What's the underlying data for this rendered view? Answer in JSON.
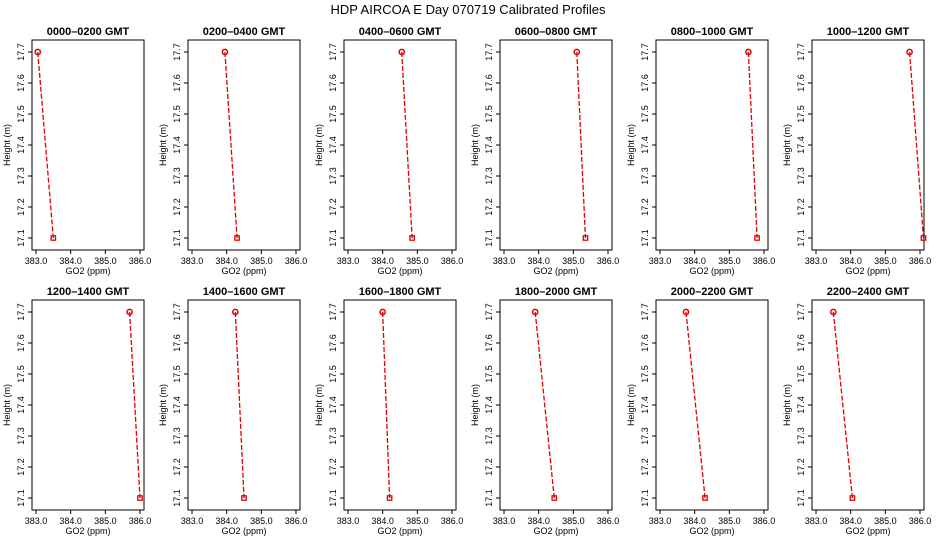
{
  "figure": {
    "title": "HDP  AIRCOA E  Day 070719  Calibrated Profiles"
  },
  "chart_data": [
    {
      "type": "line",
      "title": "0000–0200 GMT",
      "xlabel": "GO2 (ppm)",
      "ylabel": "Height (m)",
      "xlim": [
        383.0,
        386.0
      ],
      "ylim": [
        17.1,
        17.7
      ],
      "xticks": [
        "383.0",
        "384.0",
        "385.0",
        "386.0"
      ],
      "yticks": [
        "17.1",
        "17.2",
        "17.3",
        "17.4",
        "17.5",
        "17.6",
        "17.7"
      ],
      "series": [
        {
          "x": [
            383.05,
            383.5
          ],
          "y": [
            17.7,
            17.1
          ]
        }
      ]
    },
    {
      "type": "line",
      "title": "0200–0400 GMT",
      "xlabel": "GO2 (ppm)",
      "ylabel": "Height (m)",
      "xlim": [
        383.0,
        386.0
      ],
      "ylim": [
        17.1,
        17.7
      ],
      "xticks": [
        "383.0",
        "384.0",
        "385.0",
        "386.0"
      ],
      "yticks": [
        "17.1",
        "17.2",
        "17.3",
        "17.4",
        "17.5",
        "17.6",
        "17.7"
      ],
      "series": [
        {
          "x": [
            383.95,
            384.3
          ],
          "y": [
            17.7,
            17.1
          ]
        }
      ]
    },
    {
      "type": "line",
      "title": "0400–0600 GMT",
      "xlabel": "GO2 (ppm)",
      "ylabel": "Height (m)",
      "xlim": [
        383.0,
        386.0
      ],
      "ylim": [
        17.1,
        17.7
      ],
      "xticks": [
        "383.0",
        "384.0",
        "385.0",
        "386.0"
      ],
      "yticks": [
        "17.1",
        "17.2",
        "17.3",
        "17.4",
        "17.5",
        "17.6",
        "17.7"
      ],
      "series": [
        {
          "x": [
            384.55,
            384.85
          ],
          "y": [
            17.7,
            17.1
          ]
        }
      ]
    },
    {
      "type": "line",
      "title": "0600–0800 GMT",
      "xlabel": "GO2 (ppm)",
      "ylabel": "Height (m)",
      "xlim": [
        383.0,
        386.0
      ],
      "ylim": [
        17.1,
        17.7
      ],
      "xticks": [
        "383.0",
        "384.0",
        "385.0",
        "386.0"
      ],
      "yticks": [
        "17.1",
        "17.2",
        "17.3",
        "17.4",
        "17.5",
        "17.6",
        "17.7"
      ],
      "series": [
        {
          "x": [
            385.1,
            385.35
          ],
          "y": [
            17.7,
            17.1
          ]
        }
      ]
    },
    {
      "type": "line",
      "title": "0800–1000 GMT",
      "xlabel": "GO2 (ppm)",
      "ylabel": "Height (m)",
      "xlim": [
        383.0,
        386.0
      ],
      "ylim": [
        17.1,
        17.7
      ],
      "xticks": [
        "383.0",
        "384.0",
        "385.0",
        "386.0"
      ],
      "yticks": [
        "17.1",
        "17.2",
        "17.3",
        "17.4",
        "17.5",
        "17.6",
        "17.7"
      ],
      "series": [
        {
          "x": [
            385.55,
            385.8
          ],
          "y": [
            17.7,
            17.1
          ]
        }
      ]
    },
    {
      "type": "line",
      "title": "1000–1200 GMT",
      "xlabel": "GO2 (ppm)",
      "ylabel": "Height (m)",
      "xlim": [
        383.0,
        386.0
      ],
      "ylim": [
        17.1,
        17.7
      ],
      "xticks": [
        "383.0",
        "384.0",
        "385.0",
        "386.0"
      ],
      "yticks": [
        "17.1",
        "17.2",
        "17.3",
        "17.4",
        "17.5",
        "17.6",
        "17.7"
      ],
      "series": [
        {
          "x": [
            385.7,
            386.1
          ],
          "y": [
            17.7,
            17.1
          ]
        }
      ]
    },
    {
      "type": "line",
      "title": "1200–1400 GMT",
      "xlabel": "GO2 (ppm)",
      "ylabel": "Height (m)",
      "xlim": [
        383.0,
        386.0
      ],
      "ylim": [
        17.1,
        17.7
      ],
      "xticks": [
        "383.0",
        "384.0",
        "385.0",
        "386.0"
      ],
      "yticks": [
        "17.1",
        "17.2",
        "17.3",
        "17.4",
        "17.5",
        "17.6",
        "17.7"
      ],
      "series": [
        {
          "x": [
            385.7,
            386.0
          ],
          "y": [
            17.7,
            17.1
          ]
        }
      ]
    },
    {
      "type": "line",
      "title": "1400–1600 GMT",
      "xlabel": "GO2 (ppm)",
      "ylabel": "Height (m)",
      "xlim": [
        383.0,
        386.0
      ],
      "ylim": [
        17.1,
        17.7
      ],
      "xticks": [
        "383.0",
        "384.0",
        "385.0",
        "386.0"
      ],
      "yticks": [
        "17.1",
        "17.2",
        "17.3",
        "17.4",
        "17.5",
        "17.6",
        "17.7"
      ],
      "series": [
        {
          "x": [
            384.25,
            384.5
          ],
          "y": [
            17.7,
            17.1
          ]
        }
      ]
    },
    {
      "type": "line",
      "title": "1600–1800 GMT",
      "xlabel": "GO2 (ppm)",
      "ylabel": "Height (m)",
      "xlim": [
        383.0,
        386.0
      ],
      "ylim": [
        17.1,
        17.7
      ],
      "xticks": [
        "383.0",
        "384.0",
        "385.0",
        "386.0"
      ],
      "yticks": [
        "17.1",
        "17.2",
        "17.3",
        "17.4",
        "17.5",
        "17.6",
        "17.7"
      ],
      "series": [
        {
          "x": [
            384.0,
            384.2
          ],
          "y": [
            17.7,
            17.1
          ]
        }
      ]
    },
    {
      "type": "line",
      "title": "1800–2000 GMT",
      "xlabel": "GO2 (ppm)",
      "ylabel": "Height (m)",
      "xlim": [
        383.0,
        386.0
      ],
      "ylim": [
        17.1,
        17.7
      ],
      "xticks": [
        "383.0",
        "384.0",
        "385.0",
        "386.0"
      ],
      "yticks": [
        "17.1",
        "17.2",
        "17.3",
        "17.4",
        "17.5",
        "17.6",
        "17.7"
      ],
      "series": [
        {
          "x": [
            383.9,
            384.45
          ],
          "y": [
            17.7,
            17.1
          ]
        }
      ]
    },
    {
      "type": "line",
      "title": "2000–2200 GMT",
      "xlabel": "GO2 (ppm)",
      "ylabel": "Height (m)",
      "xlim": [
        383.0,
        386.0
      ],
      "ylim": [
        17.1,
        17.7
      ],
      "xticks": [
        "383.0",
        "384.0",
        "385.0",
        "386.0"
      ],
      "yticks": [
        "17.1",
        "17.2",
        "17.3",
        "17.4",
        "17.5",
        "17.6",
        "17.7"
      ],
      "series": [
        {
          "x": [
            383.75,
            384.3
          ],
          "y": [
            17.7,
            17.1
          ]
        }
      ]
    },
    {
      "type": "line",
      "title": "2200–2400 GMT",
      "xlabel": "GO2 (ppm)",
      "ylabel": "Height (m)",
      "xlim": [
        383.0,
        386.0
      ],
      "ylim": [
        17.1,
        17.7
      ],
      "xticks": [
        "383.0",
        "384.0",
        "385.0",
        "386.0"
      ],
      "yticks": [
        "17.1",
        "17.2",
        "17.3",
        "17.4",
        "17.5",
        "17.6",
        "17.7"
      ],
      "series": [
        {
          "x": [
            383.5,
            384.05
          ],
          "y": [
            17.7,
            17.1
          ]
        }
      ]
    }
  ],
  "style": {
    "series_color": "#e00000",
    "axis_color": "#000000",
    "background": "#ffffff",
    "marker_top": "circle",
    "marker_bottom": "square",
    "line_style": "dashed"
  }
}
